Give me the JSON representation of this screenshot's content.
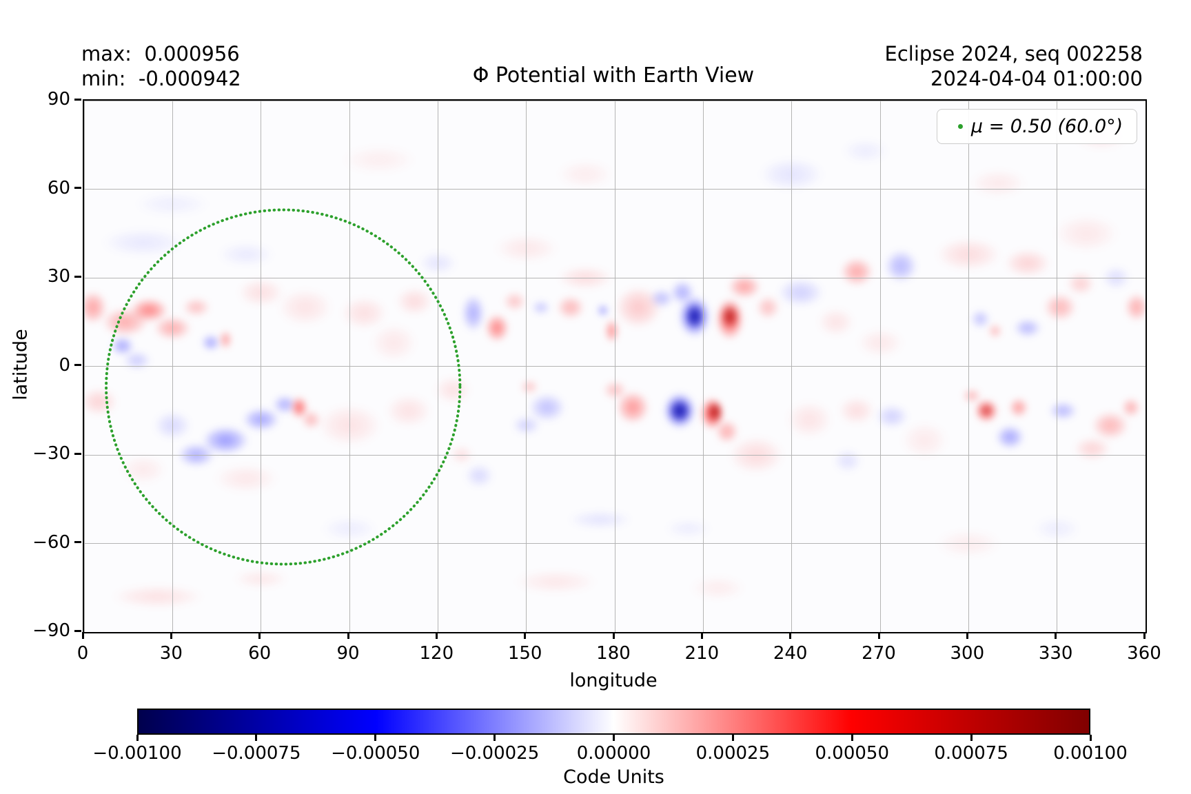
{
  "title": "Φ Potential with Earth View",
  "annotations": {
    "max_label": "max:  0.000956",
    "min_label": "min:  -0.000942",
    "run_label": "Eclipse 2024, seq 002258",
    "timestamp": "2024-04-04 01:00:00"
  },
  "axes": {
    "xlabel": "longitude",
    "ylabel": "latitude",
    "xlim": [
      0,
      360
    ],
    "ylim": [
      -90,
      90
    ],
    "x_ticks": [
      0,
      30,
      60,
      90,
      120,
      150,
      180,
      210,
      240,
      270,
      300,
      330,
      360
    ],
    "y_ticks": [
      90,
      60,
      30,
      0,
      -30,
      -60,
      -90
    ],
    "grid": true,
    "grid_color": "#b4b4b4"
  },
  "legend": {
    "label": "μ = 0.50 (60.0°)",
    "marker_color": "#2ca02c",
    "position": "upper right"
  },
  "colorbar": {
    "label": "Code Units",
    "colormap": "seismic",
    "vmin": -0.001,
    "vmax": 0.001,
    "tick_labels": [
      "−0.00100",
      "−0.00075",
      "−0.00050",
      "−0.00025",
      "0.00000",
      "0.00025",
      "0.00050",
      "0.00075",
      "0.00100"
    ]
  },
  "chart_data": {
    "type": "heatmap",
    "title": "Φ Potential with Earth View",
    "xlabel": "longitude",
    "ylabel": "latitude",
    "xlim": [
      0,
      360
    ],
    "ylim": [
      -90,
      90
    ],
    "value_units": "Code Units",
    "value_range": [
      -0.001,
      0.001
    ],
    "max_value": 0.000956,
    "min_value": -0.000942,
    "colormap": "seismic",
    "legend_position": "upper right",
    "earth_view_circle": {
      "center_lon": 67.5,
      "center_lat": -7,
      "radius_deg": 60,
      "mu": 0.5,
      "color": "#2ca02c",
      "style": "dotted"
    },
    "feature_columns": [
      "lon_deg",
      "lat_deg",
      "rx_deg",
      "ry_deg",
      "polarity",
      "intensity"
    ],
    "features": [
      [
        20,
        42,
        18,
        6,
        "b",
        0.1
      ],
      [
        55,
        38,
        12,
        5,
        "b",
        0.09
      ],
      [
        30,
        55,
        16,
        5,
        "b",
        0.07
      ],
      [
        100,
        70,
        16,
        6,
        "r",
        0.07
      ],
      [
        170,
        65,
        12,
        6,
        "r",
        0.08
      ],
      [
        240,
        65,
        14,
        7,
        "b",
        0.12
      ],
      [
        265,
        73,
        10,
        5,
        "b",
        0.08
      ],
      [
        310,
        62,
        12,
        6,
        "r",
        0.09
      ],
      [
        345,
        78,
        12,
        6,
        "r",
        0.1
      ],
      [
        120,
        35,
        8,
        5,
        "b",
        0.12
      ],
      [
        150,
        40,
        14,
        6,
        "r",
        0.1
      ],
      [
        60,
        25,
        10,
        6,
        "r",
        0.14
      ],
      [
        75,
        20,
        12,
        8,
        "r",
        0.12
      ],
      [
        95,
        18,
        10,
        7,
        "r",
        0.14
      ],
      [
        112,
        22,
        8,
        6,
        "r",
        0.16
      ],
      [
        105,
        8,
        10,
        8,
        "r",
        0.1
      ],
      [
        170,
        30,
        12,
        5,
        "r",
        0.15
      ],
      [
        188,
        20,
        10,
        9,
        "r",
        0.25
      ],
      [
        255,
        15,
        8,
        6,
        "r",
        0.12
      ],
      [
        270,
        8,
        10,
        6,
        "r",
        0.1
      ],
      [
        300,
        38,
        14,
        7,
        "r",
        0.16
      ],
      [
        320,
        35,
        10,
        6,
        "r",
        0.2
      ],
      [
        340,
        45,
        14,
        8,
        "r",
        0.1
      ],
      [
        90,
        -20,
        14,
        9,
        "r",
        0.13
      ],
      [
        110,
        -15,
        10,
        7,
        "r",
        0.13
      ],
      [
        125,
        -8,
        8,
        6,
        "r",
        0.13
      ],
      [
        55,
        -38,
        14,
        6,
        "r",
        0.1
      ],
      [
        20,
        -35,
        10,
        6,
        "r",
        0.09
      ],
      [
        5,
        -12,
        8,
        6,
        "r",
        0.2
      ],
      [
        228,
        -30,
        12,
        8,
        "r",
        0.16
      ],
      [
        246,
        -18,
        10,
        8,
        "r",
        0.12
      ],
      [
        285,
        -25,
        10,
        8,
        "r",
        0.09
      ],
      [
        262,
        -15,
        8,
        6,
        "r",
        0.15
      ],
      [
        25,
        -78,
        20,
        5,
        "r",
        0.13
      ],
      [
        60,
        -72,
        12,
        4,
        "r",
        0.1
      ],
      [
        160,
        -73,
        18,
        5,
        "r",
        0.1
      ],
      [
        215,
        -75,
        12,
        5,
        "r",
        0.08
      ],
      [
        90,
        -55,
        12,
        5,
        "b",
        0.08
      ],
      [
        175,
        -52,
        14,
        4,
        "b",
        0.12
      ],
      [
        205,
        -55,
        10,
        4,
        "b",
        0.08
      ],
      [
        300,
        -60,
        14,
        6,
        "r",
        0.08
      ],
      [
        330,
        -55,
        10,
        5,
        "b",
        0.08
      ],
      [
        259,
        -32,
        6,
        5,
        "b",
        0.14
      ],
      [
        134,
        -37,
        6,
        5,
        "b",
        0.18
      ],
      [
        128,
        -30,
        5,
        4,
        "r",
        0.14
      ],
      [
        3,
        20,
        6,
        7,
        "r",
        0.45
      ],
      [
        14,
        15,
        10,
        6,
        "r",
        0.4
      ],
      [
        22,
        19,
        8,
        5,
        "r",
        0.6
      ],
      [
        30,
        13,
        8,
        5,
        "r",
        0.4
      ],
      [
        38,
        20,
        6,
        4,
        "r",
        0.3
      ],
      [
        13,
        7,
        5,
        4,
        "b",
        0.45
      ],
      [
        18,
        2,
        6,
        4,
        "b",
        0.25
      ],
      [
        43,
        8,
        4,
        3.5,
        "b",
        0.45
      ],
      [
        48,
        9,
        2.5,
        4,
        "r",
        0.5
      ],
      [
        48,
        -25,
        10,
        6,
        "b",
        0.5
      ],
      [
        38,
        -30,
        8,
        5,
        "b",
        0.4
      ],
      [
        60,
        -18,
        8,
        5,
        "b",
        0.45
      ],
      [
        68,
        -13,
        5,
        4,
        "b",
        0.4
      ],
      [
        30,
        -20,
        8,
        6,
        "b",
        0.18
      ],
      [
        73,
        -14,
        3.5,
        4.5,
        "r",
        0.75
      ],
      [
        77,
        -18,
        4,
        4,
        "r",
        0.35
      ],
      [
        132,
        18,
        5,
        8,
        "b",
        0.4
      ],
      [
        140,
        13,
        5,
        6,
        "r",
        0.6
      ],
      [
        146,
        22,
        5,
        4,
        "r",
        0.28
      ],
      [
        155,
        20,
        4,
        3,
        "b",
        0.28
      ],
      [
        165,
        20,
        6,
        5,
        "r",
        0.35
      ],
      [
        176,
        19,
        2.5,
        2.5,
        "b",
        0.5
      ],
      [
        179,
        12,
        3,
        5,
        "r",
        0.55
      ],
      [
        196,
        23,
        5,
        4,
        "b",
        0.32
      ],
      [
        203,
        25,
        5,
        5,
        "b",
        0.4
      ],
      [
        207,
        17,
        7,
        9,
        "b",
        0.7
      ],
      [
        207,
        17,
        4,
        5.5,
        "B",
        0.95
      ],
      [
        219,
        16,
        6,
        9,
        "r",
        0.75
      ],
      [
        219,
        17,
        3.5,
        5,
        "R",
        0.85
      ],
      [
        224,
        27,
        7,
        5,
        "r",
        0.45
      ],
      [
        232,
        20,
        5,
        5,
        "r",
        0.3
      ],
      [
        243,
        25,
        10,
        6,
        "b",
        0.22
      ],
      [
        151,
        -7,
        4,
        3,
        "r",
        0.28
      ],
      [
        157,
        -14,
        8,
        6,
        "b",
        0.3
      ],
      [
        150,
        -20,
        6,
        4,
        "b",
        0.22
      ],
      [
        186,
        -14,
        7,
        7,
        "r",
        0.5
      ],
      [
        180,
        -8,
        5,
        4,
        "r",
        0.3
      ],
      [
        202,
        -15,
        7,
        8,
        "b",
        0.7
      ],
      [
        202,
        -15,
        4.5,
        5,
        "B",
        0.95
      ],
      [
        213,
        -16,
        5,
        7,
        "r",
        0.8
      ],
      [
        214,
        -15.5,
        3,
        4.5,
        "R",
        0.95
      ],
      [
        218,
        -22,
        5,
        5,
        "r",
        0.4
      ],
      [
        262,
        32,
        7,
        6,
        "r",
        0.42
      ],
      [
        277,
        34,
        7,
        7,
        "b",
        0.35
      ],
      [
        304,
        16,
        4,
        4,
        "b",
        0.3
      ],
      [
        309,
        12,
        3,
        3,
        "r",
        0.35
      ],
      [
        320,
        13,
        6,
        4,
        "b",
        0.35
      ],
      [
        331,
        20,
        7,
        6,
        "r",
        0.35
      ],
      [
        338,
        28,
        6,
        5,
        "r",
        0.22
      ],
      [
        350,
        30,
        6,
        5,
        "b",
        0.16
      ],
      [
        357,
        20,
        5,
        6,
        "r",
        0.4
      ],
      [
        274,
        -17,
        7,
        5,
        "b",
        0.22
      ],
      [
        306,
        -15,
        5,
        5,
        "r",
        0.7
      ],
      [
        306,
        -15,
        3,
        3,
        "R",
        0.5
      ],
      [
        301,
        -10,
        4,
        3,
        "r",
        0.35
      ],
      [
        314,
        -24,
        6,
        5,
        "b",
        0.45
      ],
      [
        317,
        -14,
        4,
        4,
        "r",
        0.5
      ],
      [
        332,
        -15,
        6,
        4,
        "b",
        0.35
      ],
      [
        348,
        -20,
        8,
        6,
        "r",
        0.35
      ],
      [
        355,
        -14,
        4,
        4,
        "r",
        0.4
      ],
      [
        342,
        -28,
        8,
        5,
        "r",
        0.2
      ]
    ]
  }
}
